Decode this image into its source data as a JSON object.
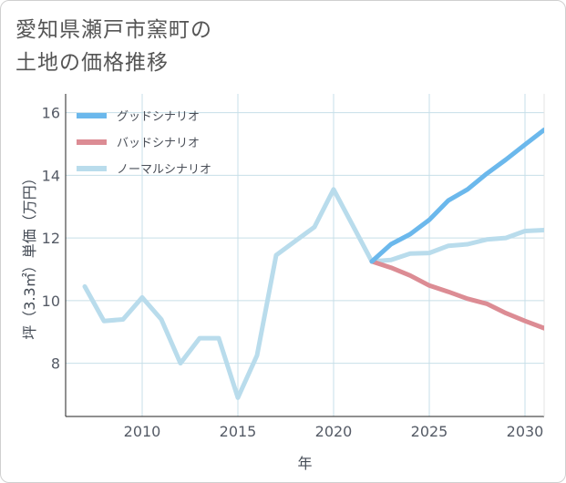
{
  "title": {
    "line1": "愛知県瀬戸市窯町の",
    "line2": "土地の価格推移"
  },
  "chart_data": {
    "type": "line",
    "xlabel": "年",
    "ylabel": "坪（3.3㎡）単価（万円）",
    "xlim": [
      2006,
      2031
    ],
    "ylim": [
      6.3,
      16.6
    ],
    "xticks": [
      2010,
      2015,
      2020,
      2025,
      2030
    ],
    "yticks": [
      8,
      10,
      12,
      14,
      16
    ],
    "grid": true,
    "legend_position": "top-left",
    "series": [
      {
        "name": "グッドシナリオ",
        "color": "#6bb8ec",
        "x": [
          2022,
          2023,
          2024,
          2025,
          2026,
          2027,
          2028,
          2029,
          2030,
          2031
        ],
        "values": [
          11.25,
          11.8,
          12.12,
          12.58,
          13.2,
          13.55,
          14.05,
          14.5,
          14.98,
          15.45
        ]
      },
      {
        "name": "バッドシナリオ",
        "color": "#dc8c94",
        "x": [
          2022,
          2023,
          2024,
          2025,
          2026,
          2027,
          2028,
          2029,
          2030,
          2031
        ],
        "values": [
          11.25,
          11.05,
          10.8,
          10.48,
          10.28,
          10.06,
          9.9,
          9.6,
          9.35,
          9.12
        ]
      },
      {
        "name": "ノーマルシナリオ",
        "color": "#b9dcec",
        "x": [
          2007,
          2008,
          2009,
          2010,
          2011,
          2012,
          2013,
          2014,
          2015,
          2016,
          2017,
          2018,
          2019,
          2020,
          2021,
          2022,
          2023,
          2024,
          2025,
          2026,
          2027,
          2028,
          2029,
          2030,
          2031
        ],
        "values": [
          10.45,
          9.35,
          9.4,
          10.1,
          9.4,
          8.0,
          8.8,
          8.8,
          6.9,
          8.25,
          11.45,
          11.9,
          12.35,
          13.55,
          12.4,
          11.25,
          11.3,
          11.5,
          11.52,
          11.75,
          11.8,
          11.95,
          12.0,
          12.22,
          12.25
        ]
      }
    ]
  }
}
